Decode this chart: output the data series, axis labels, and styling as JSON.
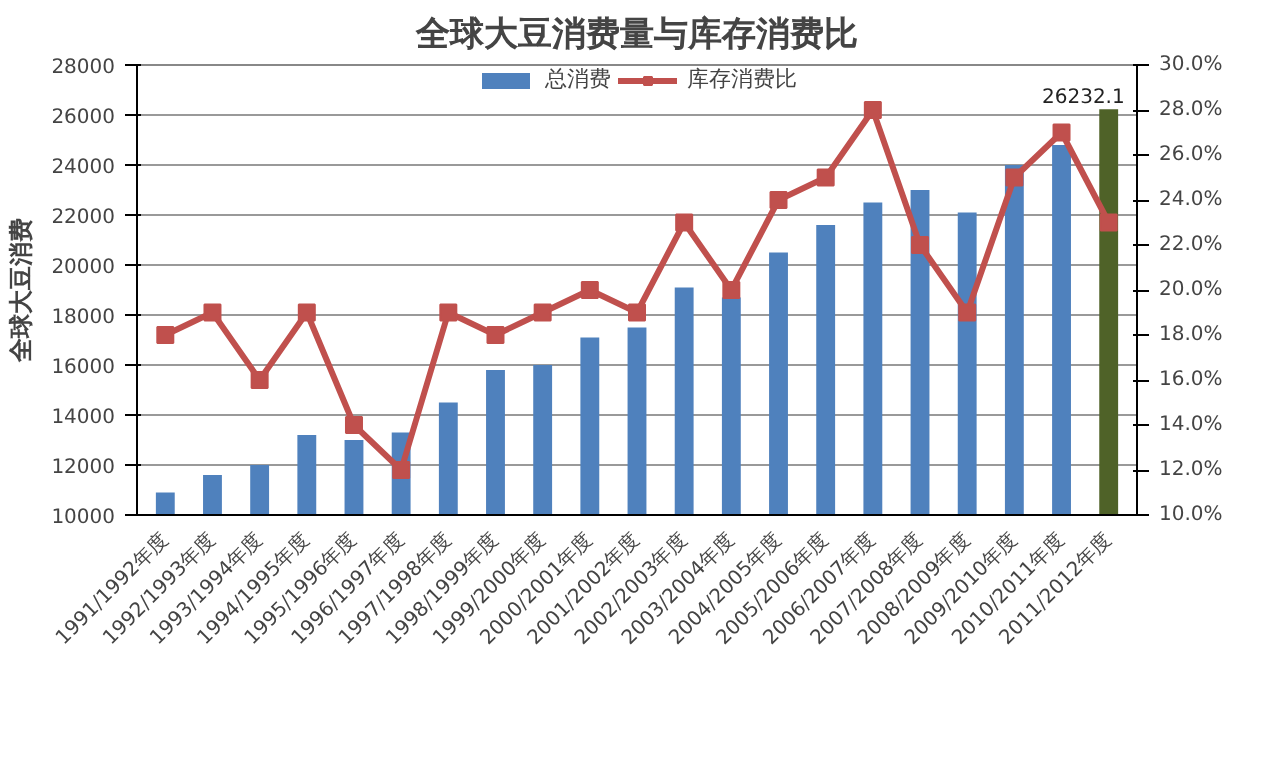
{
  "chart_data": {
    "type": "bar",
    "title": "全球大豆消费量与库存消费比",
    "ylabel": "全球大豆消费",
    "categories": [
      "1991/1992年度",
      "1992/1993年度",
      "1993/1994年度",
      "1994/1995年度",
      "1995/1996年度",
      "1996/1997年度",
      "1997/1998年度",
      "1998/1999年度",
      "1999/2000年度",
      "2000/2001年度",
      "2001/2002年度",
      "2002/2003年度",
      "2003/2004年度",
      "2004/2005年度",
      "2005/2006年度",
      "2006/2007年度",
      "2007/2008年度",
      "2008/2009年度",
      "2009/2010年度",
      "2010/2011年度",
      "2011/2012年度"
    ],
    "series": [
      {
        "name": "总消费",
        "color": "#4f81bd",
        "colors": [
          "#4f81bd",
          "#4f81bd",
          "#4f81bd",
          "#4f81bd",
          "#4f81bd",
          "#4f81bd",
          "#4f81bd",
          "#4f81bd",
          "#4f81bd",
          "#4f81bd",
          "#4f81bd",
          "#4f81bd",
          "#4f81bd",
          "#4f81bd",
          "#4f81bd",
          "#4f81bd",
          "#4f81bd",
          "#4f81bd",
          "#4f81bd",
          "#4f81bd",
          "#4f6228"
        ],
        "values": [
          10900,
          11600,
          12000,
          13200,
          13000,
          13300,
          14500,
          15800,
          16000,
          17100,
          17500,
          19100,
          18700,
          20500,
          21600,
          22500,
          23000,
          22100,
          24000,
          24800,
          26232.1
        ],
        "value_labels": [
          null,
          null,
          null,
          null,
          null,
          null,
          null,
          null,
          null,
          null,
          null,
          null,
          null,
          null,
          null,
          null,
          null,
          null,
          null,
          null,
          "26232.1"
        ]
      },
      {
        "name": "库存消费比",
        "type": "line",
        "axis": "y2",
        "color": "#c0504d",
        "marker": "square",
        "values": [
          18,
          19,
          16,
          19,
          14,
          12,
          19,
          18,
          19,
          20,
          19,
          23,
          20,
          24,
          25,
          28,
          22,
          19,
          25,
          27,
          23
        ]
      }
    ],
    "ylim": [
      10000,
      28000
    ],
    "yticks": [
      10000,
      12000,
      14000,
      16000,
      18000,
      20000,
      22000,
      24000,
      26000,
      28000
    ],
    "y2lim": [
      10,
      30
    ],
    "y2ticks": [
      {
        "value": 10,
        "label": "10.0%"
      },
      {
        "value": 12,
        "label": "12.0%"
      },
      {
        "value": 14,
        "label": "14.0%"
      },
      {
        "value": 16,
        "label": "16.0%"
      },
      {
        "value": 18,
        "label": "18.0%"
      },
      {
        "value": 20,
        "label": "20.0%"
      },
      {
        "value": 22,
        "label": "22.0%"
      },
      {
        "value": 24,
        "label": "24.0%"
      },
      {
        "value": 26,
        "label": "26.0%"
      },
      {
        "value": 28,
        "label": "28.0%"
      },
      {
        "value": 30,
        "label": "30.0%"
      }
    ],
    "grid": "y",
    "legend": "top"
  }
}
